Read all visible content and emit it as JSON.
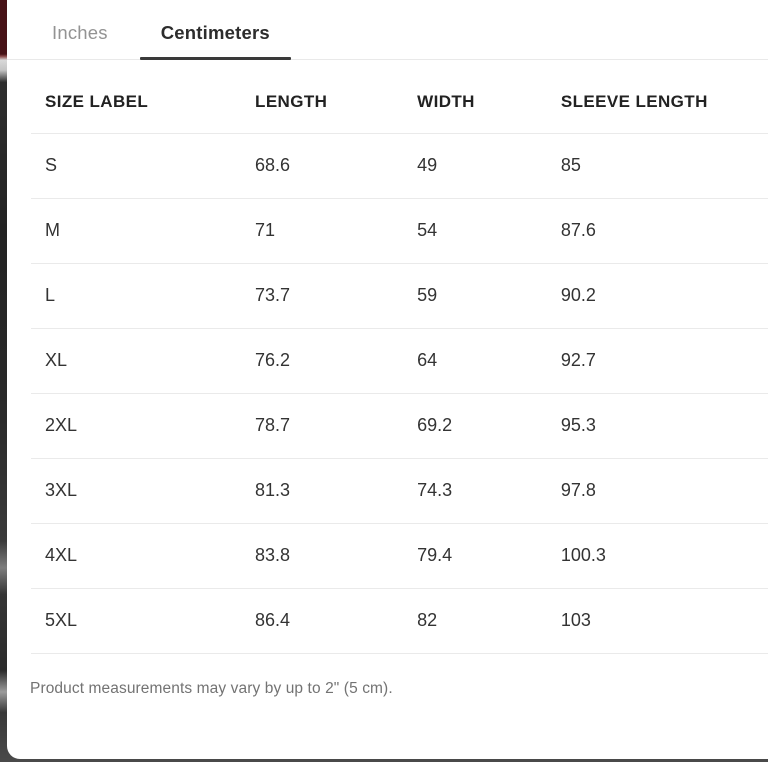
{
  "tabs": [
    {
      "label": "Inches",
      "active": false
    },
    {
      "label": "Centimeters",
      "active": true
    }
  ],
  "table": {
    "columns": [
      "SIZE LABEL",
      "LENGTH",
      "WIDTH",
      "SLEEVE LENGTH"
    ],
    "rows": [
      [
        "S",
        "68.6",
        "49",
        "85"
      ],
      [
        "M",
        "71",
        "54",
        "87.6"
      ],
      [
        "L",
        "73.7",
        "59",
        "90.2"
      ],
      [
        "XL",
        "76.2",
        "64",
        "92.7"
      ],
      [
        "2XL",
        "78.7",
        "69.2",
        "95.3"
      ],
      [
        "3XL",
        "81.3",
        "74.3",
        "97.8"
      ],
      [
        "4XL",
        "83.8",
        "79.4",
        "100.3"
      ],
      [
        "5XL",
        "86.4",
        "82",
        "103"
      ]
    ]
  },
  "note": "Product measurements may vary by up to 2\" (5 cm).",
  "colors": {
    "active_tab_underline": "#3a3a3a",
    "inactive_tab_text": "#939393",
    "row_divider": "#eaeaea",
    "backdrop_maroon": "#471216",
    "backdrop_dark": "#2a2a2a"
  }
}
